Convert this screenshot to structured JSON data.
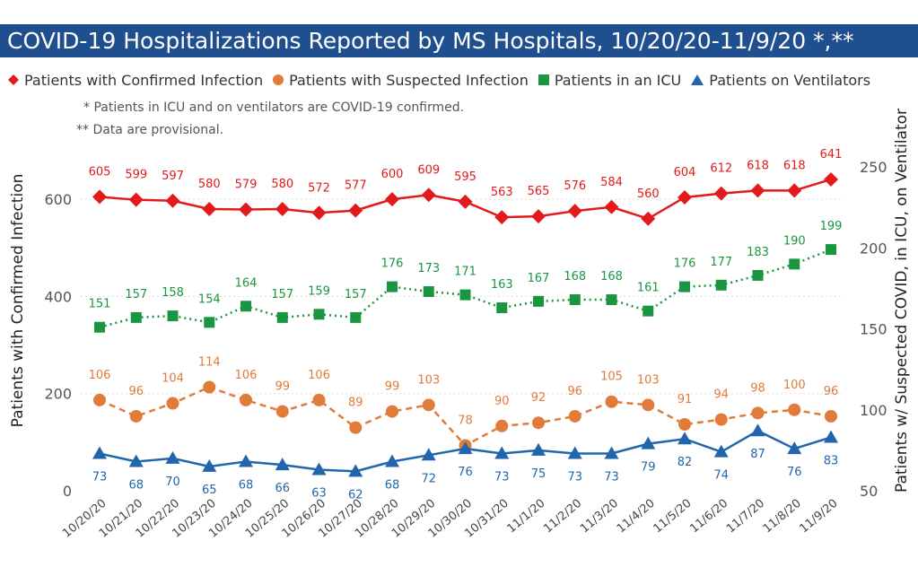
{
  "chart_data": {
    "type": "line",
    "title": "COVID-19 Hospitalizations Reported by MS Hospitals, 10/20/20-11/9/20 *,**",
    "notes": [
      "* Patients in ICU and on ventilators are COVID-19 confirmed.",
      "** Data are provisional."
    ],
    "ylabel": "Patients with Confirmed Infection",
    "y2label": "Patients w/ Suspected COVID, in ICU, on Ventilator",
    "ylim": [
      0,
      700
    ],
    "y2lim": [
      50,
      260
    ],
    "yticks": [
      0,
      200,
      400,
      600
    ],
    "y2ticks": [
      50,
      100,
      150,
      200,
      250
    ],
    "legend_position": "top",
    "categories": [
      "10/20/20",
      "10/21/20",
      "10/22/20",
      "10/23/20",
      "10/24/20",
      "10/25/20",
      "10/26/20",
      "10/27/20",
      "10/28/20",
      "10/29/20",
      "10/30/20",
      "10/31/20",
      "11/1/20",
      "11/2/20",
      "11/3/20",
      "11/4/20",
      "11/5/20",
      "11/6/20",
      "11/7/20",
      "11/8/20",
      "11/9/20"
    ],
    "series": [
      {
        "name": "Patients with Confirmed Infection",
        "axis": "left",
        "color": "#e31a1c",
        "marker": "diamond",
        "line": "solid",
        "values": [
          605,
          599,
          597,
          580,
          579,
          580,
          572,
          577,
          600,
          609,
          595,
          563,
          565,
          576,
          584,
          560,
          604,
          612,
          618,
          618,
          641
        ]
      },
      {
        "name": "Patients with Suspected Infection",
        "axis": "right",
        "color": "#e07b39",
        "marker": "circle",
        "line": "dashed",
        "values": [
          106,
          96,
          104,
          114,
          106,
          99,
          106,
          89,
          99,
          103,
          78,
          90,
          92,
          96,
          105,
          103,
          91,
          94,
          98,
          100,
          96
        ]
      },
      {
        "name": "Patients in an ICU",
        "axis": "right",
        "color": "#1a9641",
        "marker": "square",
        "line": "dotted",
        "values": [
          151,
          157,
          158,
          154,
          164,
          157,
          159,
          157,
          176,
          173,
          171,
          163,
          167,
          168,
          168,
          161,
          176,
          177,
          183,
          190,
          199
        ]
      },
      {
        "name": "Patients on Ventilators",
        "axis": "right",
        "color": "#2166ac",
        "marker": "triangle",
        "line": "solid",
        "values": [
          73,
          68,
          70,
          65,
          68,
          66,
          63,
          62,
          68,
          72,
          76,
          73,
          75,
          73,
          73,
          79,
          82,
          74,
          87,
          76,
          83
        ]
      }
    ]
  }
}
